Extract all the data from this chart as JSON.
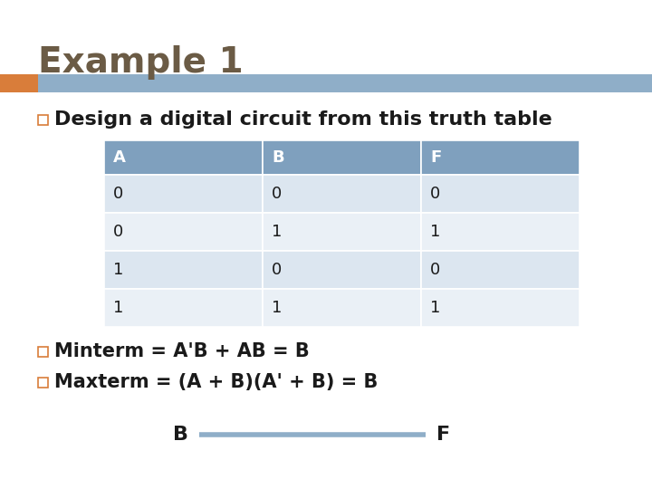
{
  "title": "Example 1",
  "title_color": "#6b5b45",
  "title_fontsize": 28,
  "title_fontweight": "bold",
  "accent_bar_orange": "#d97d3a",
  "accent_bar_blue": "#8faec8",
  "bullet_color": "#d97d3a",
  "bullet1_text": "Design a digital circuit from this truth table",
  "bullet1_fontsize": 16,
  "table_headers": [
    "A",
    "B",
    "F"
  ],
  "table_data": [
    [
      "0",
      "0",
      "0"
    ],
    [
      "0",
      "1",
      "1"
    ],
    [
      "1",
      "0",
      "0"
    ],
    [
      "1",
      "1",
      "1"
    ]
  ],
  "table_header_bg": "#7fa0be",
  "table_row_bg_odd": "#dce6f0",
  "table_row_bg_even": "#eaf0f6",
  "bullet2_text": "Minterm = A'B + AB = B",
  "bullet3_text": "Maxterm = (A + B)(A' + B) = B",
  "bullet_fontsize": 15,
  "wire_color": "#8faec8",
  "wire_linewidth": 4,
  "wire_label_fontsize": 16,
  "background_color": "#ffffff",
  "text_color": "#1a1a1a"
}
